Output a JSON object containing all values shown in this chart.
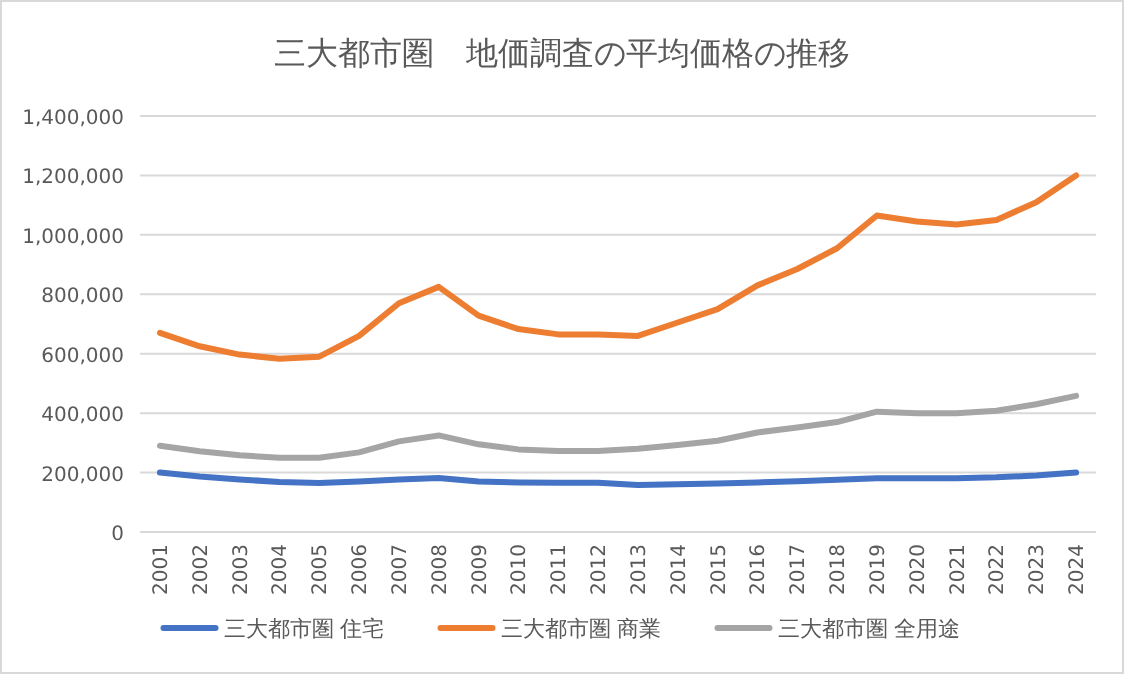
{
  "chart_data": {
    "type": "line",
    "title": "三大都市圏　地価調査の平均価格の推移",
    "categories": [
      "2001",
      "2002",
      "2003",
      "2004",
      "2005",
      "2006",
      "2007",
      "2008",
      "2009",
      "2010",
      "2011",
      "2012",
      "2013",
      "2014",
      "2015",
      "2016",
      "2017",
      "2018",
      "2019",
      "2020",
      "2021",
      "2022",
      "2023",
      "2024"
    ],
    "series": [
      {
        "name": "三大都市圏 住宅",
        "color": "#4472c4",
        "values": [
          200000,
          187000,
          177000,
          168000,
          165000,
          170000,
          177000,
          182000,
          170000,
          167000,
          166000,
          166000,
          158000,
          161000,
          163000,
          167000,
          171000,
          176000,
          181000,
          181000,
          181000,
          184000,
          190000,
          200000
        ]
      },
      {
        "name": "三大都市圏 商業",
        "color": "#ed7d31",
        "values": [
          670000,
          625000,
          597000,
          583000,
          590000,
          660000,
          770000,
          825000,
          728000,
          683000,
          665000,
          665000,
          660000,
          705000,
          750000,
          830000,
          885000,
          955000,
          1065000,
          1045000,
          1035000,
          1050000,
          1110000,
          1200000
        ]
      },
      {
        "name": "三大都市圏 全用途",
        "color": "#a5a5a5",
        "values": [
          290000,
          272000,
          258000,
          250000,
          250000,
          268000,
          305000,
          325000,
          295000,
          278000,
          273000,
          273000,
          280000,
          293000,
          307000,
          335000,
          352000,
          370000,
          405000,
          400000,
          400000,
          408000,
          430000,
          458000
        ]
      }
    ],
    "ylim": [
      0,
      1400000
    ],
    "yticks": [
      {
        "value": 0,
        "label": "0"
      },
      {
        "value": 200000,
        "label": "200,000"
      },
      {
        "value": 400000,
        "label": "400,000"
      },
      {
        "value": 600000,
        "label": "600,000"
      },
      {
        "value": 800000,
        "label": "800,000"
      },
      {
        "value": 1000000,
        "label": "1,000,000"
      },
      {
        "value": 1200000,
        "label": "1,200,000"
      },
      {
        "value": 1400000,
        "label": "1,400,000"
      }
    ],
    "grid": "y",
    "legend": "bottom",
    "marker": "none",
    "line_style": "solid"
  }
}
